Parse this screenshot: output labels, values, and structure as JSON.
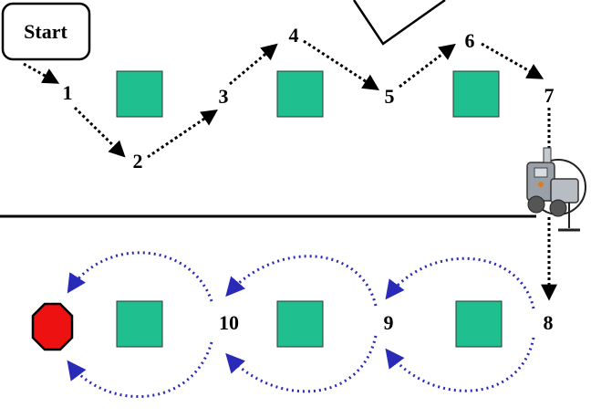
{
  "start": {
    "label": "Start"
  },
  "waypoints": [
    {
      "id": "wp1",
      "label": "1"
    },
    {
      "id": "wp2",
      "label": "2"
    },
    {
      "id": "wp3",
      "label": "3"
    },
    {
      "id": "wp4",
      "label": "4"
    },
    {
      "id": "wp5",
      "label": "5"
    },
    {
      "id": "wp6",
      "label": "6"
    },
    {
      "id": "wp7",
      "label": "7"
    },
    {
      "id": "wp8",
      "label": "8"
    },
    {
      "id": "wp9",
      "label": "9"
    },
    {
      "id": "wp10",
      "label": "10"
    }
  ],
  "colors": {
    "obstacle": "#1fbf8f",
    "stop_sign": "#ee1111",
    "top_path": "#000000",
    "bottom_path": "#2a2ab8",
    "divider": "#000000"
  },
  "icons": [
    "start-box",
    "obstacle-square",
    "stop-sign-icon",
    "robot-icon"
  ]
}
